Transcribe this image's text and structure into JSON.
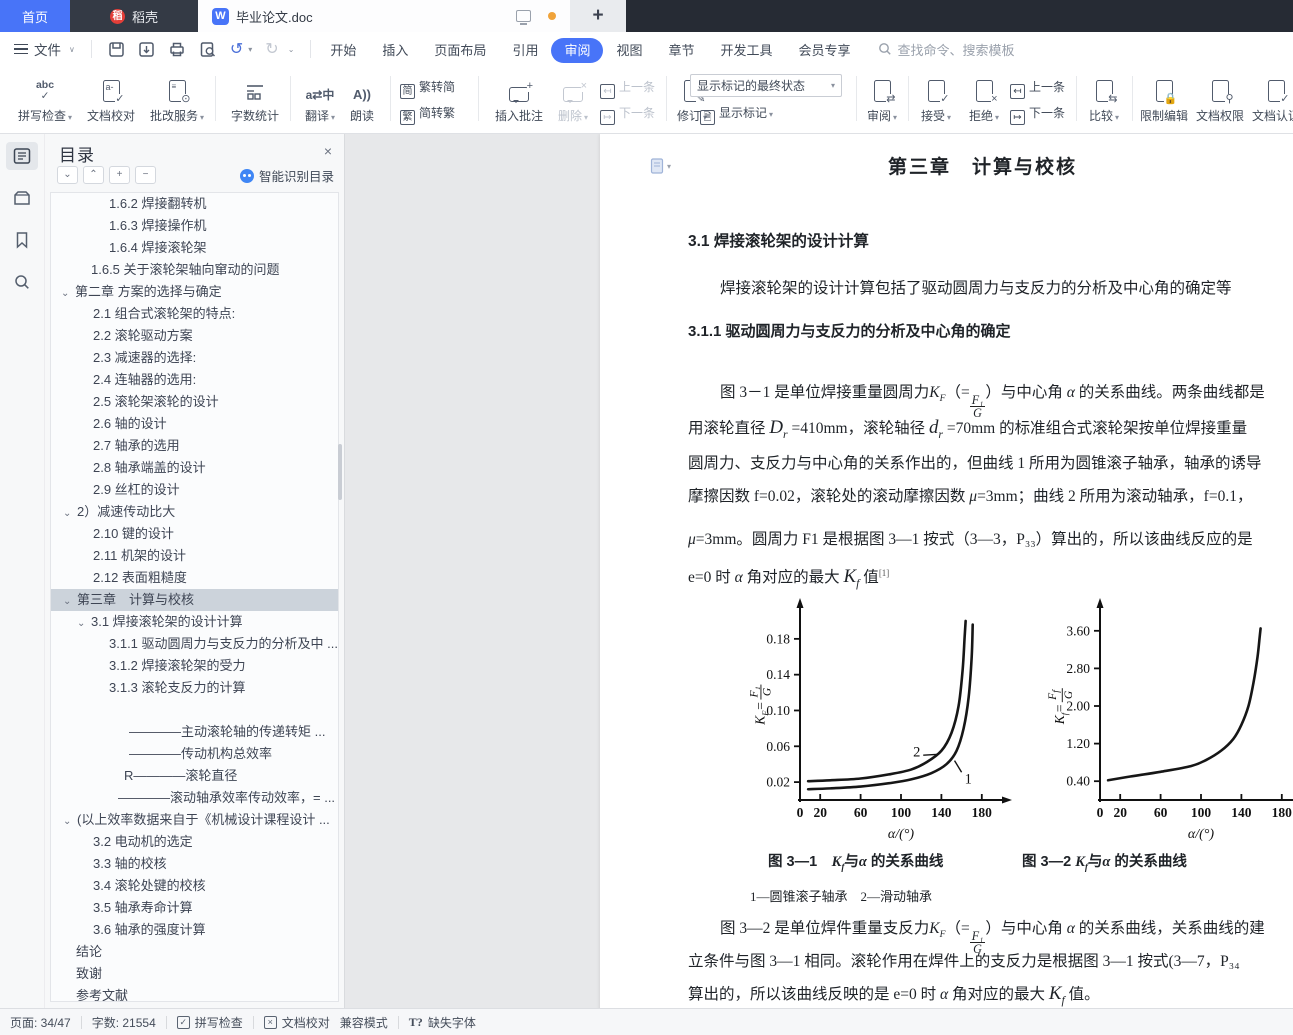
{
  "tabbar": {
    "home": "首页",
    "daoke": "稻壳",
    "doc": "毕业论文.doc",
    "wps": "W",
    "plus": "+"
  },
  "menus": {
    "file": "文件",
    "items": [
      "开始",
      "插入",
      "页面布局",
      "引用",
      "审阅",
      "视图",
      "章节",
      "开发工具",
      "会员专享"
    ],
    "active": "审阅",
    "search_placeholder": "查找命令、搜索模板"
  },
  "ribbon": {
    "spell": "拼写检查",
    "proof": "文档校对",
    "grade": "批改服务",
    "count": "字数统计",
    "translate": "翻译",
    "read": "朗读",
    "t2s": "繁转简",
    "s2t": "简转繁",
    "comment": "插入批注",
    "del": "删除",
    "prev": "上一条",
    "next": "下一条",
    "track": "修订",
    "markup_state": "显示标记的最终状态",
    "show_markup": "显示标记",
    "review": "审阅",
    "accept": "接受",
    "reject": "拒绝",
    "prev2": "上一条",
    "next2": "下一条",
    "compare": "比较",
    "restrict": "限制编辑",
    "perm": "文档权限",
    "cert": "文档认证",
    "jian": "简",
    "fan": "繁",
    "abc": "abc",
    "trans_glyph": "a⇄中",
    "read_glyph": "A))"
  },
  "sidebar": {
    "title": "目录",
    "close": "×",
    "controls": [
      "⌄",
      "⌃",
      "+",
      "−"
    ],
    "smart": "智能识别目录",
    "items": [
      {
        "ind": 108,
        "label": "1.6.2 焊接翻转机"
      },
      {
        "ind": 108,
        "label": "1.6.3 焊接操作机"
      },
      {
        "ind": 108,
        "label": "1.6.4 焊接滚轮架"
      },
      {
        "ind": 90,
        "label": "1.6.5 关于滚轮架轴向窜动的问题"
      },
      {
        "ind": 68,
        "arrow": true,
        "label": "第二章 方案的选择与确定"
      },
      {
        "ind": 92,
        "label": "2.1 组合式滚轮架的特点:"
      },
      {
        "ind": 92,
        "label": "2.2 滚轮驱动方案"
      },
      {
        "ind": 92,
        "label": "2.3 减速器的选择:"
      },
      {
        "ind": 92,
        "label": "2.4 连轴器的选用:"
      },
      {
        "ind": 92,
        "label": "2.5 滚轮架滚轮的设计"
      },
      {
        "ind": 92,
        "label": "2.6 轴的设计"
      },
      {
        "ind": 92,
        "label": "2.7 轴承的选用"
      },
      {
        "ind": 92,
        "label": "2.8 轴承端盖的设计"
      },
      {
        "ind": 92,
        "label": "2.9 丝杠的设计"
      },
      {
        "ind": 98,
        "arrow": true,
        "arrowx": 62,
        "label": "2）减速传动比大"
      },
      {
        "ind": 92,
        "label": "2.10 键的设计"
      },
      {
        "ind": 92,
        "label": "2.11 机架的设计"
      },
      {
        "ind": 92,
        "label": "2.12 表面粗糙度"
      },
      {
        "ind": 75,
        "arrow": true,
        "arrowx": 62,
        "sel": true,
        "label": "第三章　计算与校核"
      },
      {
        "ind": 92,
        "arrow": true,
        "arrowx": 76,
        "label": "3.1 焊接滚轮架的设计计算"
      },
      {
        "ind": 108,
        "label": "3.1.1 驱动圆周力与支反力的分析及中 ..."
      },
      {
        "ind": 108,
        "label": "3.1.2 焊接滚轮架的受力"
      },
      {
        "ind": 108,
        "label": "3.1.3 滚轮支反力的计算"
      },
      {
        "gap": true
      },
      {
        "ind": 128,
        "label": "————主动滚轮轴的传递转矩 ..."
      },
      {
        "ind": 128,
        "label": "————传动机构总效率"
      },
      {
        "ind": 123,
        "label": "R————滚轮直径"
      },
      {
        "ind": 117,
        "label": "————滚动轴承效率传动效率，= ..."
      },
      {
        "ind": 75,
        "arrow": true,
        "arrowx": 62,
        "label": "(以上效率数据来自于《机械设计课程设计 ..."
      },
      {
        "ind": 92,
        "label": "3.2 电动机的选定"
      },
      {
        "ind": 92,
        "label": "3.3 轴的校核"
      },
      {
        "ind": 92,
        "label": "3.4 滚轮处键的校核"
      },
      {
        "ind": 92,
        "label": "3.5 轴承寿命计算"
      },
      {
        "ind": 92,
        "label": "3.6 轴承的强度计算"
      },
      {
        "ind": 75,
        "label": "结论"
      },
      {
        "ind": 75,
        "label": "致谢"
      },
      {
        "ind": 75,
        "label": "参考文献"
      }
    ]
  },
  "document": {
    "chapter_title": "第三章　计算与校核",
    "h31": "3.1 焊接滚轮架的设计计算",
    "p31": "焊接滚轮架的设计计算包括了驱动圆周力与支反力的分析及中心角的确定等",
    "h311": "3.1.1 驱动圆周力与支反力的分析及中心角的确定",
    "para1_lines": [
      [
        {
          "x": "图 3－1 是单位焊接重量圆周力"
        },
        {
          "v": "K",
          "sub": "F"
        },
        {
          "x": "（="
        },
        {
          "frac": [
            "F₁",
            "G"
          ]
        },
        {
          "x": "）与中心角 "
        },
        {
          "v": "α"
        },
        {
          "x": " 的关系曲线。两条曲线都是"
        }
      ],
      [
        {
          "x": "用滚轮直径 "
        },
        {
          "v": "D",
          "sub": "r",
          "big": true
        },
        {
          "x": " =410mm，滚轮轴径 "
        },
        {
          "v": "d",
          "sub": "r",
          "big": true
        },
        {
          "x": " =70mm 的标准组合式滚轮架按单位焊接重量"
        }
      ],
      [
        {
          "x": "圆周力、支反力与中心角的关系作出的，但曲线 1 所用为圆锥滚子轴承，轴承的诱导"
        }
      ],
      [
        {
          "x": "摩擦因数 f=0.02，滚轮处的滚动摩擦因数 "
        },
        {
          "v": "μ"
        },
        {
          "x": "=3mm；曲线 2 所用为滚动轴承，f=0.1，"
        }
      ],
      [
        {
          "v": "μ"
        },
        {
          "x": "=3mm。圆周力 F1 是根据图 3—1 按式（3—3，P₃₃）算出的，所以该曲线反应的是"
        }
      ],
      [
        {
          "x": "e=0 时 "
        },
        {
          "v": "α"
        },
        {
          "x": " 角对应的最大 "
        },
        {
          "v": "K",
          "sub": "f",
          "big": true
        },
        {
          "x": " 值"
        },
        {
          "sup": "[1]"
        }
      ]
    ],
    "fig1_caption": [
      {
        "x": "图 3—1　"
      },
      {
        "v": "K",
        "sub": "f"
      },
      {
        "x": "与"
      },
      {
        "v": "α"
      },
      {
        "x": " 的关系曲线"
      }
    ],
    "fig2_caption": [
      {
        "x": "图 3—2 "
      },
      {
        "v": "K",
        "sub": "f"
      },
      {
        "x": "与"
      },
      {
        "v": "α"
      },
      {
        "x": " 的关系曲线"
      }
    ],
    "fig_legend": "1—圆锥滚子轴承　2—滑动轴承",
    "para2_lines": [
      [
        {
          "x": "图 3—2 是单位焊件重量支反力"
        },
        {
          "v": "K",
          "sub": "F"
        },
        {
          "x": "（="
        },
        {
          "frac": [
            "F₁",
            "G"
          ]
        },
        {
          "x": "）与中心角 "
        },
        {
          "v": "α"
        },
        {
          "x": " 的关系曲线，关系曲线的建"
        }
      ],
      [
        {
          "x": "立条件与图 3—1 相同。滚轮作用在焊件上的支反力是根据图 3—1 按式(3—7，P₃₄"
        }
      ],
      [
        {
          "x": "算出的，所以该曲线反映的是 e=0 时 "
        },
        {
          "v": "α"
        },
        {
          "x": " 角对应的最大 "
        },
        {
          "v": "K",
          "sub": "f",
          "big": true
        },
        {
          "x": " 值。"
        }
      ]
    ]
  },
  "chart_data": [
    {
      "type": "line",
      "title": "图 3—1 Kf 与 α 的关系曲线",
      "xlabel": "α/(°)",
      "ylabel": "K_F = F1/G",
      "ylabel_parts": {
        "pre": "K",
        "presub": "F",
        "num": "F₁",
        "den": "G"
      },
      "xlim": [
        0,
        200
      ],
      "ylim": [
        0,
        0.21
      ],
      "xticks": [
        0,
        20,
        60,
        100,
        140,
        180
      ],
      "yticks": [
        0.02,
        0.06,
        0.1,
        0.14,
        0.18
      ],
      "ytick_labels": [
        "0.02",
        "0.06",
        "0.10",
        "0.14",
        "0.18"
      ],
      "grid": false,
      "series": [
        {
          "name": "1－圆锥滚子轴承",
          "points": [
            [
              8,
              0.012
            ],
            [
              30,
              0.013
            ],
            [
              60,
              0.015
            ],
            [
              90,
              0.019
            ],
            [
              110,
              0.023
            ],
            [
              130,
              0.03
            ],
            [
              145,
              0.04
            ],
            [
              155,
              0.055
            ],
            [
              162,
              0.08
            ],
            [
              167,
              0.115
            ],
            [
              170,
              0.16
            ],
            [
              171,
              0.196
            ]
          ]
        },
        {
          "name": "2－滑动轴承",
          "points": [
            [
              8,
              0.021
            ],
            [
              30,
              0.022
            ],
            [
              60,
              0.024
            ],
            [
              90,
              0.029
            ],
            [
              110,
              0.034
            ],
            [
              125,
              0.042
            ],
            [
              140,
              0.055
            ],
            [
              150,
              0.075
            ],
            [
              157,
              0.105
            ],
            [
              161,
              0.145
            ],
            [
              163,
              0.182
            ],
            [
              164,
              0.2
            ]
          ]
        }
      ],
      "curve_labels": [
        {
          "text": "2",
          "x": 112,
          "y": 0.054,
          "leader": [
            [
              122,
              0.05
            ],
            [
              137,
              0.051
            ]
          ]
        },
        {
          "text": "1",
          "x": 163,
          "y": 0.024,
          "leader": [
            [
              160,
              0.031
            ],
            [
              153,
              0.044
            ]
          ]
        }
      ]
    },
    {
      "type": "line",
      "title": "图 3—2 Kf 与 α 的关系曲线",
      "xlabel": "α/(°)",
      "ylabel": "K_f = Ff/G",
      "ylabel_parts": {
        "pre": "K",
        "presub": "f",
        "num": "F_f",
        "den": "G"
      },
      "xlim": [
        0,
        200
      ],
      "ylim": [
        0,
        4.0
      ],
      "xticks": [
        0,
        20,
        60,
        100,
        140,
        180
      ],
      "yticks": [
        0.4,
        1.2,
        2.0,
        2.8,
        3.6
      ],
      "ytick_labels": [
        "0.40",
        "1.20",
        "2.00",
        "2.80",
        "3.60"
      ],
      "grid": false,
      "series": [
        {
          "name": "Kf",
          "points": [
            [
              8,
              0.42
            ],
            [
              30,
              0.5
            ],
            [
              60,
              0.6
            ],
            [
              90,
              0.72
            ],
            [
              105,
              0.85
            ],
            [
              120,
              1.05
            ],
            [
              132,
              1.3
            ],
            [
              140,
              1.6
            ],
            [
              147,
              2.0
            ],
            [
              152,
              2.5
            ],
            [
              156,
              3.05
            ],
            [
              158,
              3.45
            ],
            [
              159,
              3.65
            ]
          ]
        }
      ],
      "curve_labels": []
    }
  ],
  "statusbar": {
    "page": "页面: 34/47",
    "words": "字数: 21554",
    "spell": "拼写检查",
    "proof": "文档校对",
    "compat": "兼容模式",
    "missing": "缺失字体",
    "missing_glyph": "T?"
  }
}
